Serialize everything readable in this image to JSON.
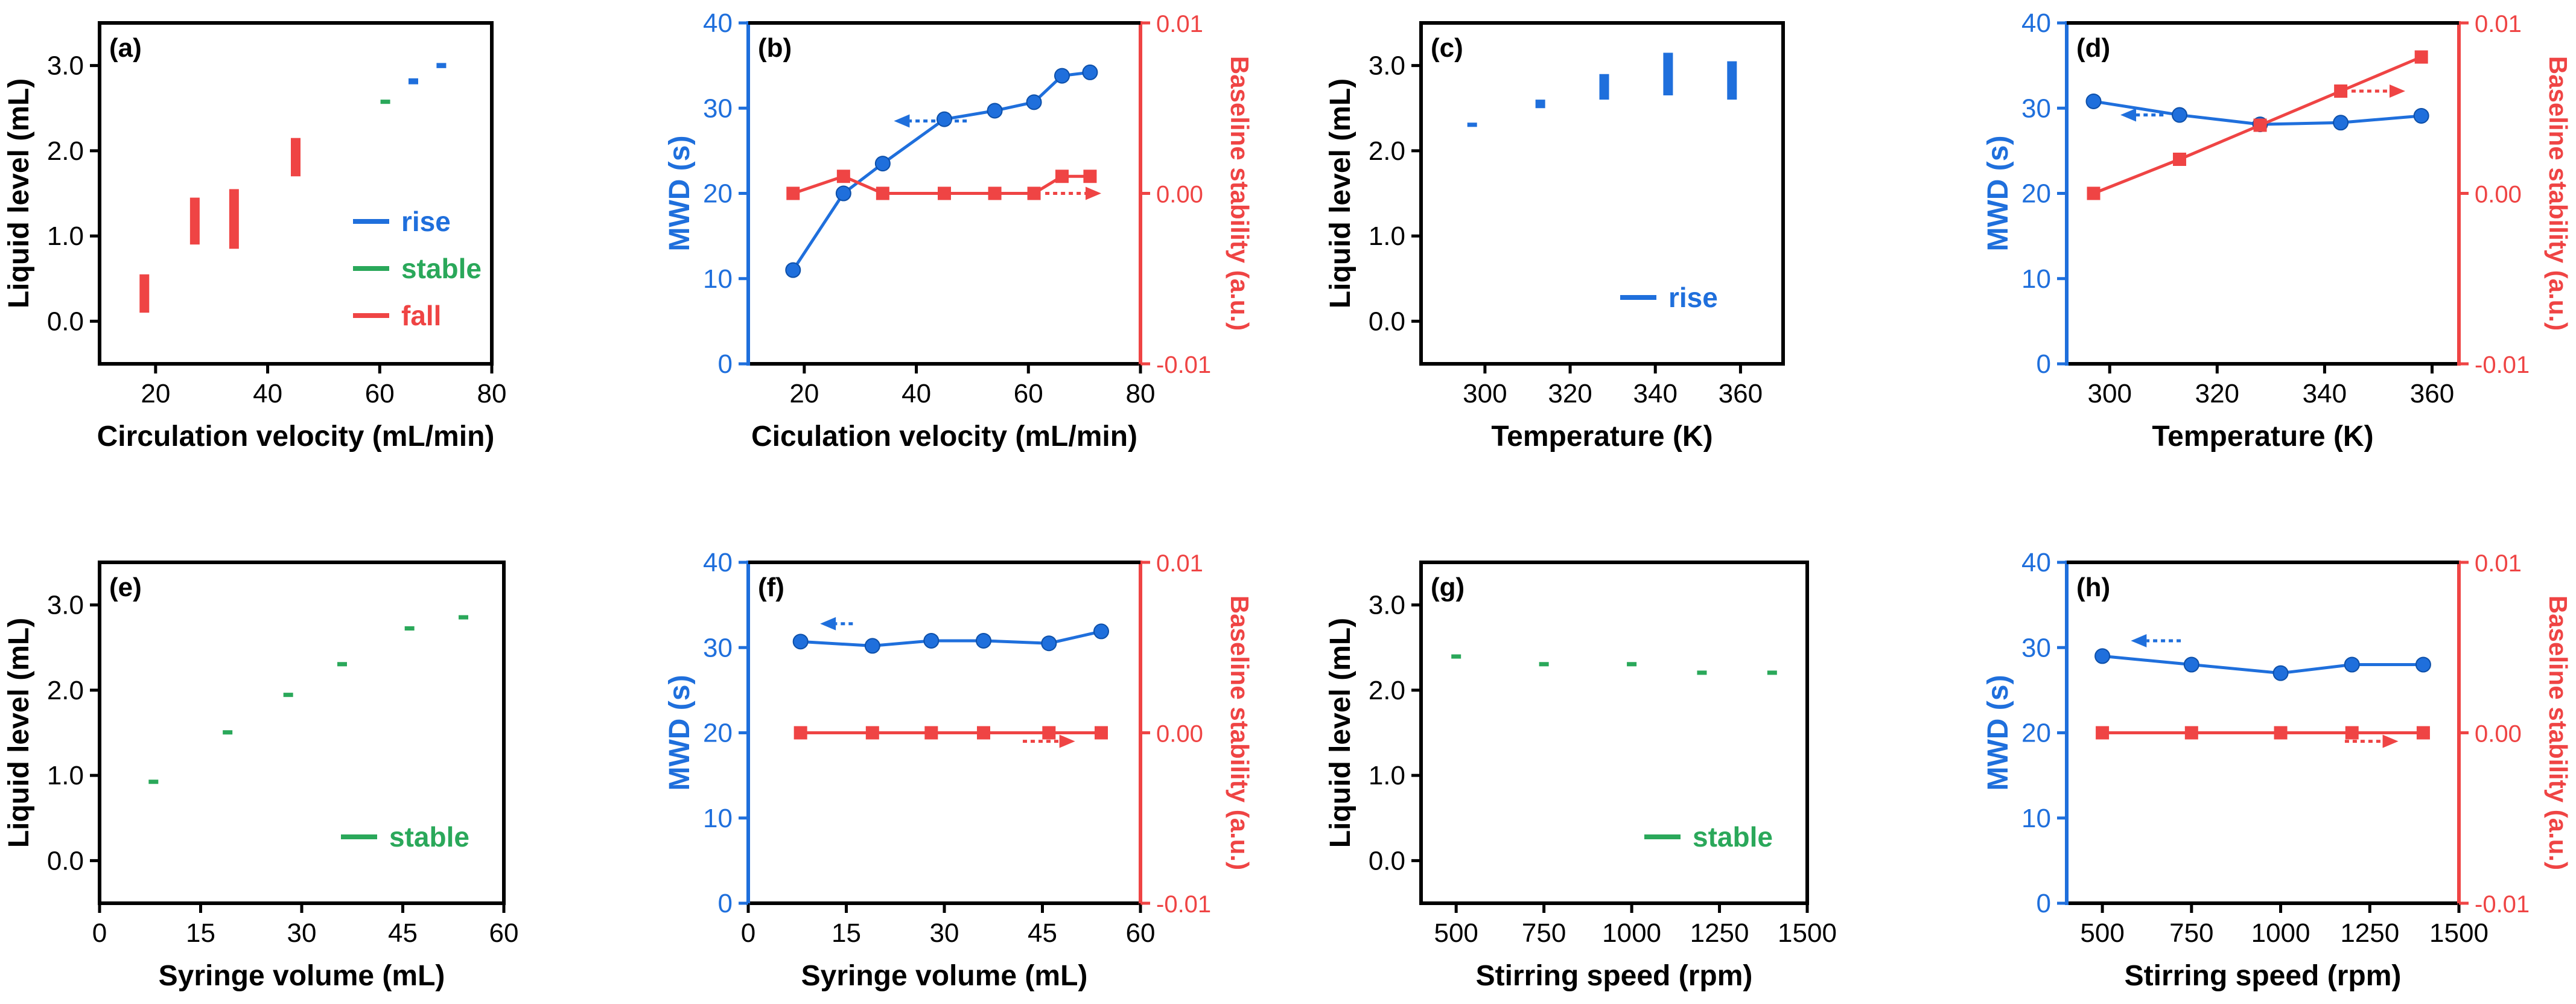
{
  "colors": {
    "rise": "#1f6fdc",
    "stable": "#2aa85a",
    "fall": "#ef4444",
    "mwd": "#1f6fdc",
    "baseline": "#ef4444",
    "axis": "#000000"
  },
  "chart_data": [
    {
      "id": "a",
      "type": "range-bar",
      "panel_label": "(a)",
      "xlabel": "Circulation velocity (mL/min)",
      "ylabel": "Liquid level (mL)",
      "xlim": [
        10,
        80
      ],
      "ylim": [
        -0.5,
        3.5
      ],
      "xticks": [
        20,
        40,
        60,
        80
      ],
      "xtick_labels": [
        "20",
        "40",
        "60",
        "80"
      ],
      "yticks": [
        0,
        1,
        2,
        3
      ],
      "ytick_labels": [
        "0.0",
        "1.0",
        "2.0",
        "3.0"
      ],
      "bars": [
        {
          "x": 18,
          "low": 0.1,
          "high": 0.55,
          "cat": "fall"
        },
        {
          "x": 27,
          "low": 0.9,
          "high": 1.45,
          "cat": "fall"
        },
        {
          "x": 34,
          "low": 0.85,
          "high": 1.55,
          "cat": "fall"
        },
        {
          "x": 45,
          "low": 1.7,
          "high": 2.15,
          "cat": "fall"
        },
        {
          "x": 61,
          "low": 2.55,
          "high": 2.6,
          "cat": "stable"
        },
        {
          "x": 66,
          "low": 2.78,
          "high": 2.85,
          "cat": "rise"
        },
        {
          "x": 71,
          "low": 2.97,
          "high": 3.03,
          "cat": "rise"
        }
      ],
      "legend": [
        {
          "label": "rise",
          "cat": "rise"
        },
        {
          "label": "stable",
          "cat": "stable"
        },
        {
          "label": "fall",
          "cat": "fall"
        }
      ],
      "legend_pos": "right"
    },
    {
      "id": "b",
      "type": "dual-line",
      "panel_label": "(b)",
      "xlabel": "Ciculation velocity (mL/min)",
      "ylabel": "MWD (s)",
      "y2label": "Baseline stability (a.u.)",
      "xlim": [
        10,
        80
      ],
      "ylim": [
        0,
        40
      ],
      "y2lim": [
        -0.01,
        0.01
      ],
      "xticks": [
        20,
        40,
        60,
        80
      ],
      "xtick_labels": [
        "20",
        "40",
        "60",
        "80"
      ],
      "yticks": [
        0,
        10,
        20,
        30,
        40
      ],
      "ytick_labels": [
        "0",
        "10",
        "20",
        "30",
        "40"
      ],
      "y2ticks": [
        -0.01,
        0,
        0.01
      ],
      "y2tick_labels": [
        "-0.01",
        "0.00",
        "0.01"
      ],
      "x": [
        18,
        27,
        34,
        45,
        54,
        61,
        66,
        71
      ],
      "series": [
        {
          "name": "MWD",
          "axis": "left",
          "marker": "circle",
          "values": [
            11,
            20,
            23.5,
            28.7,
            29.7,
            30.7,
            33.8,
            34.2
          ]
        },
        {
          "name": "Baseline stability",
          "axis": "right",
          "marker": "square",
          "values": [
            0,
            0.001,
            0,
            0,
            0,
            0,
            0.001,
            0.001
          ]
        }
      ],
      "arrows": [
        {
          "series": "MWD",
          "dir": "left",
          "x0": 49,
          "x1": 36,
          "y": 28.5
        },
        {
          "series": "Baseline stability",
          "dir": "right",
          "x0": 63,
          "x1": 73,
          "y": 0
        }
      ]
    },
    {
      "id": "c",
      "type": "range-bar",
      "panel_label": "(c)",
      "xlabel": "Temperature (K)",
      "ylabel": "Liquid level (mL)",
      "xlim": [
        285,
        370
      ],
      "ylim": [
        -0.5,
        3.5
      ],
      "xticks": [
        300,
        320,
        340,
        360
      ],
      "xtick_labels": [
        "300",
        "320",
        "340",
        "360"
      ],
      "yticks": [
        0,
        1,
        2,
        3
      ],
      "ytick_labels": [
        "0.0",
        "1.0",
        "2.0",
        "3.0"
      ],
      "bars": [
        {
          "x": 297,
          "low": 2.28,
          "high": 2.33,
          "cat": "rise"
        },
        {
          "x": 313,
          "low": 2.5,
          "high": 2.6,
          "cat": "rise"
        },
        {
          "x": 328,
          "low": 2.6,
          "high": 2.9,
          "cat": "rise"
        },
        {
          "x": 343,
          "low": 2.65,
          "high": 3.15,
          "cat": "rise"
        },
        {
          "x": 358,
          "low": 2.6,
          "high": 3.05,
          "cat": "rise"
        }
      ],
      "legend": [
        {
          "label": "rise",
          "cat": "rise"
        }
      ],
      "legend_pos": "lower-right"
    },
    {
      "id": "d",
      "type": "dual-line",
      "panel_label": "(d)",
      "xlabel": "Temperature (K)",
      "ylabel": "MWD (s)",
      "y2label": "Baseline stability (a.u.)",
      "xlim": [
        292,
        365
      ],
      "ylim": [
        0,
        40
      ],
      "y2lim": [
        -0.01,
        0.01
      ],
      "xticks": [
        300,
        320,
        340,
        360
      ],
      "xtick_labels": [
        "300",
        "320",
        "340",
        "360"
      ],
      "yticks": [
        0,
        10,
        20,
        30,
        40
      ],
      "ytick_labels": [
        "0",
        "10",
        "20",
        "30",
        "40"
      ],
      "y2ticks": [
        -0.01,
        0,
        0.01
      ],
      "y2tick_labels": [
        "-0.01",
        "0.00",
        "0.01"
      ],
      "x": [
        297,
        313,
        328,
        343,
        358
      ],
      "series": [
        {
          "name": "MWD",
          "axis": "left",
          "marker": "circle",
          "values": [
            30.8,
            29.2,
            28.1,
            28.3,
            29.1
          ]
        },
        {
          "name": "Baseline stability",
          "axis": "right",
          "marker": "square",
          "values": [
            0,
            0.002,
            0.004,
            0.006,
            0.008
          ]
        }
      ],
      "arrows": [
        {
          "series": "MWD",
          "dir": "left",
          "x0": 310,
          "x1": 302,
          "y": 29.2
        },
        {
          "series": "Baseline stability",
          "dir": "right",
          "x0": 345,
          "x1": 355,
          "y": 0.006
        }
      ]
    },
    {
      "id": "e",
      "type": "range-bar",
      "panel_label": "(e)",
      "xlabel": "Syringe volume (mL)",
      "ylabel": "Liquid level (mL)",
      "xlim": [
        0,
        60
      ],
      "ylim": [
        -0.5,
        3.5
      ],
      "xticks": [
        0,
        15,
        30,
        45,
        60
      ],
      "xtick_labels": [
        "0",
        "15",
        "30",
        "45",
        "60"
      ],
      "yticks": [
        0,
        1,
        2,
        3
      ],
      "ytick_labels": [
        "0.0",
        "1.0",
        "2.0",
        "3.0"
      ],
      "bars": [
        {
          "x": 8,
          "low": 0.9,
          "high": 0.95,
          "cat": "stable"
        },
        {
          "x": 19,
          "low": 1.48,
          "high": 1.53,
          "cat": "stable"
        },
        {
          "x": 28,
          "low": 1.92,
          "high": 1.97,
          "cat": "stable"
        },
        {
          "x": 36,
          "low": 2.28,
          "high": 2.33,
          "cat": "stable"
        },
        {
          "x": 46,
          "low": 2.7,
          "high": 2.75,
          "cat": "stable"
        },
        {
          "x": 54,
          "low": 2.83,
          "high": 2.88,
          "cat": "stable"
        }
      ],
      "legend": [
        {
          "label": "stable",
          "cat": "stable"
        }
      ],
      "legend_pos": "lower-right"
    },
    {
      "id": "f",
      "type": "dual-line",
      "panel_label": "(f)",
      "xlabel": "Syringe volume (mL)",
      "ylabel": "MWD (s)",
      "y2label": "Baseline stability (a.u.)",
      "xlim": [
        0,
        60
      ],
      "ylim": [
        0,
        40
      ],
      "y2lim": [
        -0.01,
        0.01
      ],
      "xticks": [
        0,
        15,
        30,
        45,
        60
      ],
      "xtick_labels": [
        "0",
        "15",
        "30",
        "45",
        "60"
      ],
      "yticks": [
        0,
        10,
        20,
        30,
        40
      ],
      "ytick_labels": [
        "0",
        "10",
        "20",
        "30",
        "40"
      ],
      "y2ticks": [
        -0.01,
        0,
        0.01
      ],
      "y2tick_labels": [
        "-0.01",
        "0.00",
        "0.01"
      ],
      "x": [
        8,
        19,
        28,
        36,
        46,
        54
      ],
      "series": [
        {
          "name": "MWD",
          "axis": "left",
          "marker": "circle",
          "values": [
            30.7,
            30.2,
            30.8,
            30.8,
            30.5,
            31.9
          ]
        },
        {
          "name": "Baseline stability",
          "axis": "right",
          "marker": "square",
          "values": [
            0,
            0,
            0,
            0,
            0,
            0
          ]
        }
      ],
      "arrows": [
        {
          "series": "MWD",
          "dir": "left",
          "x0": 16,
          "x1": 11,
          "y": 32.8
        },
        {
          "series": "Baseline stability",
          "dir": "right",
          "x0": 42,
          "x1": 50,
          "y": -0.0005
        }
      ]
    },
    {
      "id": "g",
      "type": "range-bar",
      "panel_label": "(g)",
      "xlabel": "Stirring speed (rpm)",
      "ylabel": "Liquid level (mL)",
      "xlim": [
        400,
        1500
      ],
      "ylim": [
        -0.5,
        3.5
      ],
      "xticks": [
        500,
        750,
        1000,
        1250,
        1500
      ],
      "xtick_labels": [
        "500",
        "750",
        "1000",
        "1250",
        "1500"
      ],
      "yticks": [
        0,
        1,
        2,
        3
      ],
      "ytick_labels": [
        "0.0",
        "1.0",
        "2.0",
        "3.0"
      ],
      "bars": [
        {
          "x": 500,
          "low": 2.37,
          "high": 2.42,
          "cat": "stable"
        },
        {
          "x": 750,
          "low": 2.28,
          "high": 2.33,
          "cat": "stable"
        },
        {
          "x": 1000,
          "low": 2.28,
          "high": 2.33,
          "cat": "stable"
        },
        {
          "x": 1200,
          "low": 2.18,
          "high": 2.23,
          "cat": "stable"
        },
        {
          "x": 1400,
          "low": 2.18,
          "high": 2.23,
          "cat": "stable"
        }
      ],
      "legend": [
        {
          "label": "stable",
          "cat": "stable"
        }
      ],
      "legend_pos": "lower-right"
    },
    {
      "id": "h",
      "type": "dual-line",
      "panel_label": "(h)",
      "xlabel": "Stirring speed (rpm)",
      "ylabel": "MWD (s)",
      "y2label": "Baseline stability (a.u.)",
      "xlim": [
        400,
        1500
      ],
      "ylim": [
        0,
        40
      ],
      "y2lim": [
        -0.01,
        0.01
      ],
      "xticks": [
        500,
        750,
        1000,
        1250,
        1500
      ],
      "xtick_labels": [
        "500",
        "750",
        "1000",
        "1250",
        "1500"
      ],
      "yticks": [
        0,
        10,
        20,
        30,
        40
      ],
      "ytick_labels": [
        "0",
        "10",
        "20",
        "30",
        "40"
      ],
      "y2ticks": [
        -0.01,
        0,
        0.01
      ],
      "y2tick_labels": [
        "-0.01",
        "0.00",
        "0.01"
      ],
      "x": [
        500,
        750,
        1000,
        1200,
        1400
      ],
      "series": [
        {
          "name": "MWD",
          "axis": "left",
          "marker": "circle",
          "values": [
            29,
            28,
            27,
            28,
            28
          ]
        },
        {
          "name": "Baseline stability",
          "axis": "right",
          "marker": "square",
          "values": [
            0,
            0,
            0,
            0,
            0
          ]
        }
      ],
      "arrows": [
        {
          "series": "MWD",
          "dir": "left",
          "x0": 720,
          "x1": 580,
          "y": 30.8
        },
        {
          "series": "Baseline stability",
          "dir": "right",
          "x0": 1180,
          "x1": 1330,
          "y": -0.0005
        }
      ]
    }
  ]
}
